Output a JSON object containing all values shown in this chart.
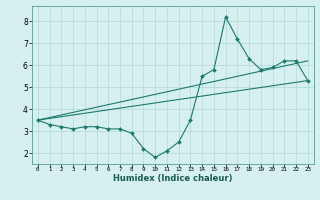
{
  "xlabel": "Humidex (Indice chaleur)",
  "ylabel": "",
  "background_color": "#d6f0ef",
  "grid_color": "#b0d8d8",
  "line_color": "#1a7a6e",
  "xlim": [
    -0.5,
    23.5
  ],
  "ylim": [
    1.5,
    8.7
  ],
  "xticks": [
    0,
    1,
    2,
    3,
    4,
    5,
    6,
    7,
    8,
    9,
    10,
    11,
    12,
    13,
    14,
    15,
    16,
    17,
    18,
    19,
    20,
    21,
    22,
    23
  ],
  "yticks": [
    2,
    3,
    4,
    5,
    6,
    7,
    8
  ],
  "line1_x": [
    0,
    1,
    2,
    3,
    4,
    5,
    6,
    7,
    8,
    9,
    10,
    11,
    12,
    13,
    14,
    15,
    16,
    17,
    18,
    19,
    20,
    21,
    22,
    23
  ],
  "line1_y": [
    3.5,
    3.3,
    3.2,
    3.1,
    3.2,
    3.2,
    3.1,
    3.1,
    2.9,
    2.2,
    1.8,
    2.1,
    2.5,
    3.5,
    5.5,
    5.8,
    8.2,
    7.2,
    6.3,
    5.8,
    5.9,
    6.2,
    6.2,
    5.3
  ],
  "line2_x": [
    0,
    23
  ],
  "line2_y": [
    3.5,
    5.3
  ],
  "line3_x": [
    0,
    23
  ],
  "line3_y": [
    3.5,
    6.2
  ]
}
